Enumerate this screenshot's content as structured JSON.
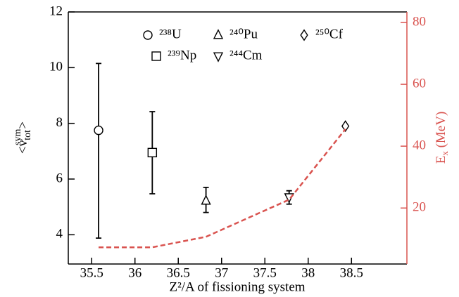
{
  "chart_data": {
    "type": "scatter",
    "xlabel": "Z²/A of fissioning system",
    "ylabel": {
      "open": "<ν",
      "sub": "tot",
      "sup": "sym",
      "close": ">"
    },
    "y2label": {
      "base": "E",
      "sub": "x",
      "unit": " (MeV)"
    },
    "xlim": [
      35.23,
      39.14
    ],
    "xticks": [
      35.5,
      36,
      36.5,
      37,
      37.5,
      38,
      38.5
    ],
    "ylim": [
      2.95,
      12
    ],
    "yticks": [
      4,
      6,
      8,
      10,
      12
    ],
    "y2lim": [
      1.9,
      83.4
    ],
    "y2ticks": [
      20,
      40,
      60,
      80
    ],
    "y2color": "#d9534f",
    "series": [
      {
        "name": "²³⁸U",
        "marker": "circle",
        "color": "#000000",
        "x": [
          35.58
        ],
        "values": [
          7.75
        ],
        "error_minus": [
          3.87
        ],
        "error_plus": [
          2.4
        ]
      },
      {
        "name": "²³⁹Np",
        "marker": "square",
        "color": "#000000",
        "x": [
          36.2
        ],
        "values": [
          6.95
        ],
        "error_minus": [
          1.48
        ],
        "error_plus": [
          1.47
        ]
      },
      {
        "name": "²⁴⁰Pu",
        "marker": "triangle-up",
        "color": "#000000",
        "x": [
          36.82
        ],
        "values": [
          5.22
        ],
        "error_minus": [
          0.42
        ],
        "error_plus": [
          0.48
        ]
      },
      {
        "name": "²⁴⁴Cm",
        "marker": "triangle-down",
        "color": "#000000",
        "x": [
          37.78
        ],
        "values": [
          5.35
        ],
        "error_minus": [
          0.25
        ],
        "error_plus": [
          0.23
        ]
      },
      {
        "name": "²⁵⁰Cf",
        "marker": "diamond",
        "color": "#000000",
        "x": [
          38.43
        ],
        "values": [
          7.9
        ]
      },
      {
        "type": "line",
        "axis": "y2",
        "dashed": true,
        "color": "#d9534f",
        "x": [
          35.58,
          36.2,
          36.82,
          37.78,
          38.43
        ],
        "values": [
          7.3,
          7.3,
          10.7,
          22.7,
          45.5
        ]
      }
    ]
  }
}
